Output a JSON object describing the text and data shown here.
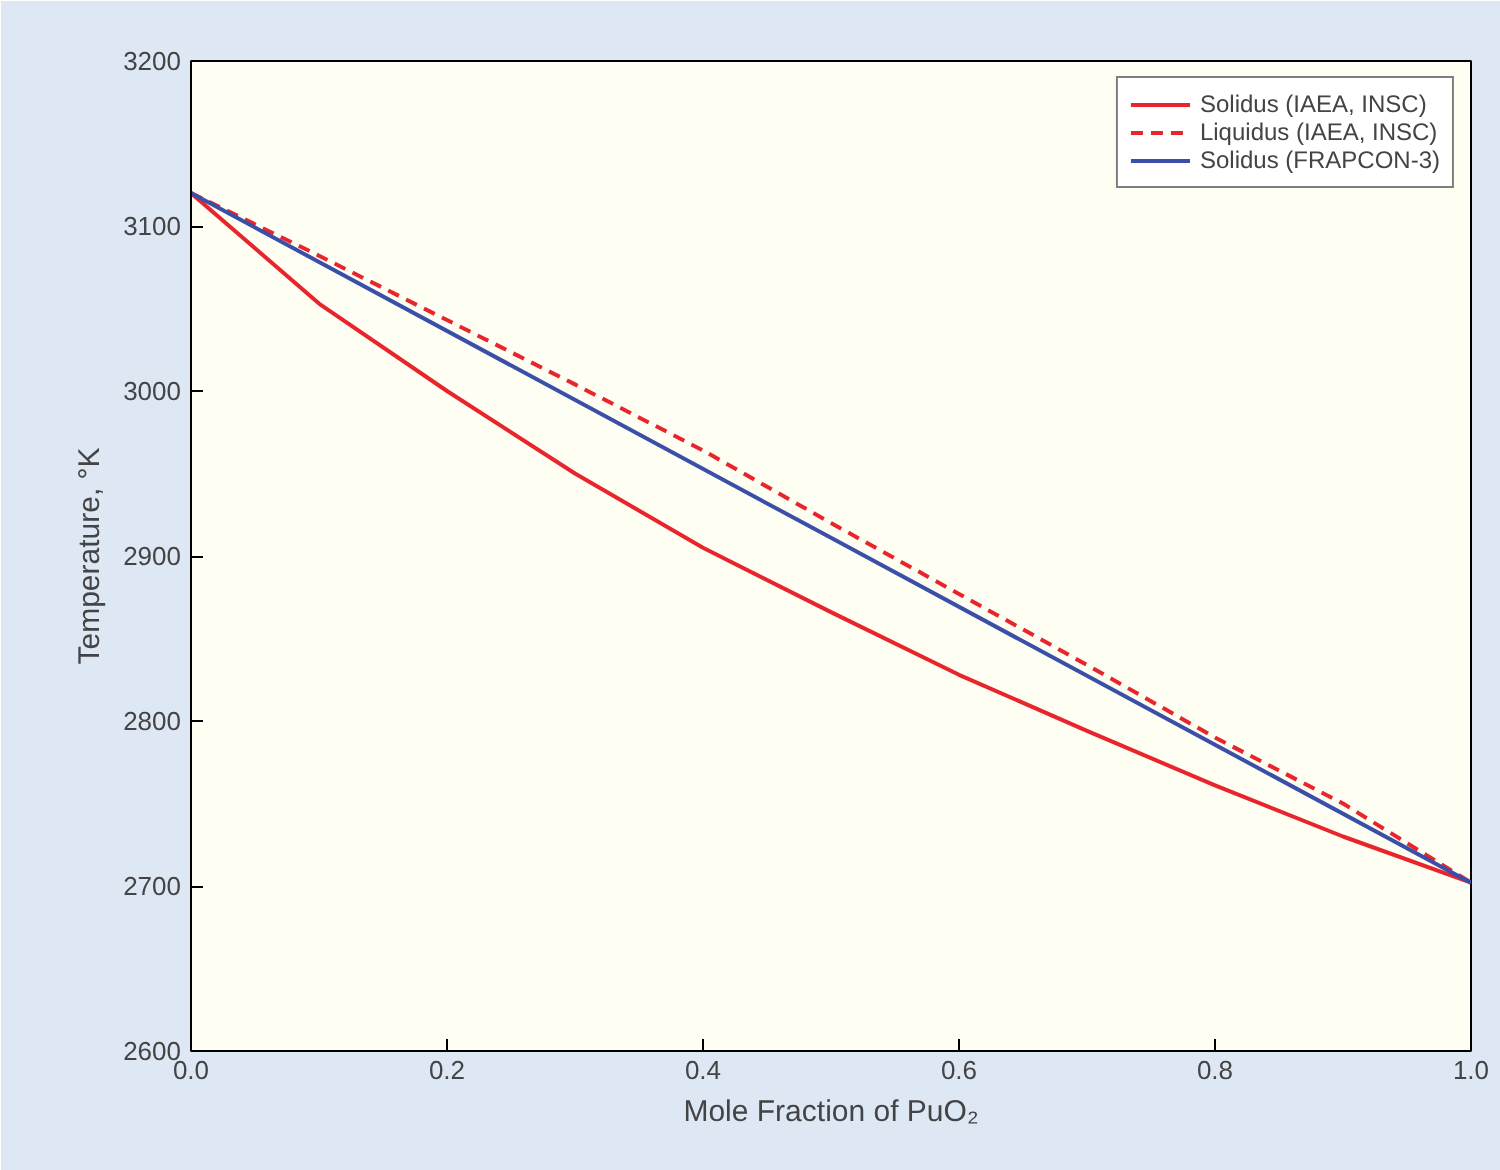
{
  "chart_data": {
    "type": "line",
    "xlabel": "Mole Fraction of PuO₂",
    "ylabel": "Temperature, °K",
    "x": [
      0,
      0.1,
      0.2,
      0.3,
      0.4,
      0.5,
      0.6,
      0.7,
      0.8,
      0.9,
      1.0
    ],
    "series": [
      {
        "name": "Solidus (IAEA, INSC)",
        "color": "#e8242c",
        "line_style": "solid",
        "values": [
          3120,
          3053,
          3000,
          2950,
          2905,
          2866,
          2828,
          2794,
          2761,
          2730,
          2702
        ]
      },
      {
        "name": "Liquidus (IAEA, INSC)",
        "color": "#e8242c",
        "line_style": "dashed",
        "values": [
          3120,
          3082,
          3043,
          3004,
          2964,
          2920,
          2877,
          2834,
          2790,
          2750,
          2702
        ]
      },
      {
        "name": "Solidus (FRAPCON-3)",
        "color": "#3a4fa8",
        "line_style": "solid",
        "x": [
          0,
          0.5,
          1.0
        ],
        "values": [
          3120,
          2911,
          2702
        ]
      }
    ],
    "xlim": [
      0,
      1.0
    ],
    "ylim": [
      2600,
      3200
    ],
    "xticks": [
      {
        "value": 0,
        "label": "0.0"
      },
      0.2,
      0.4,
      0.6,
      0.8,
      {
        "value": 1.0,
        "label": "1.0"
      }
    ],
    "yticks": [
      2600,
      2700,
      2800,
      2900,
      3000,
      3100,
      3200
    ],
    "grid": false,
    "legend": "top right",
    "marker": "none"
  }
}
